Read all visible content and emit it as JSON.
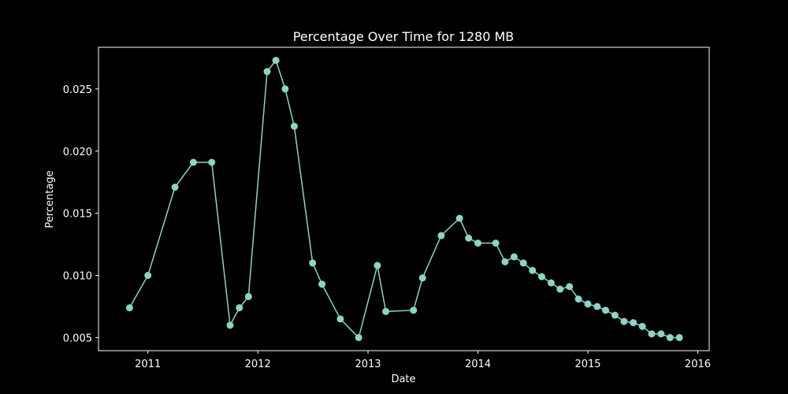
{
  "chart_data": {
    "type": "line",
    "title": "Percentage Over Time for 1280 MB",
    "xlabel": "Date",
    "ylabel": "Percentage",
    "x_ticks": [
      "2011",
      "2012",
      "2013",
      "2014",
      "2015",
      "2016"
    ],
    "y_ticks": [
      "0.005",
      "0.010",
      "0.015",
      "0.020",
      "0.025"
    ],
    "xlim": [
      "2010-07-21",
      "2016-02-08"
    ],
    "ylim": [
      0.00395,
      0.02835
    ],
    "grid": false,
    "line_color": "#8dd3c7",
    "background": "#000000",
    "foreground": "#ffffff",
    "series": [
      {
        "marker": "circle",
        "x": [
          "2010-11-01",
          "2011-01-01",
          "2011-04-01",
          "2011-06-01",
          "2011-08-01",
          "2011-10-01",
          "2011-11-01",
          "2011-12-01",
          "2012-02-01",
          "2012-03-01",
          "2012-04-01",
          "2012-05-01",
          "2012-07-01",
          "2012-08-01",
          "2012-10-01",
          "2012-12-01",
          "2013-02-01",
          "2013-03-01",
          "2013-06-01",
          "2013-07-01",
          "2013-09-01",
          "2013-11-01",
          "2013-12-01",
          "2014-01-01",
          "2014-03-01",
          "2014-04-01",
          "2014-05-01",
          "2014-06-01",
          "2014-07-01",
          "2014-08-01",
          "2014-09-01",
          "2014-10-01",
          "2014-11-01",
          "2014-12-01",
          "2015-01-01",
          "2015-02-01",
          "2015-03-01",
          "2015-04-01",
          "2015-05-01",
          "2015-06-01",
          "2015-07-01",
          "2015-08-01",
          "2015-09-01",
          "2015-10-01",
          "2015-11-01"
        ],
        "y": [
          0.0074,
          0.01,
          0.0171,
          0.0191,
          0.0191,
          0.006,
          0.0074,
          0.0083,
          0.0264,
          0.0273,
          0.025,
          0.022,
          0.011,
          0.0093,
          0.0065,
          0.005,
          0.0108,
          0.0071,
          0.0072,
          0.0098,
          0.0132,
          0.0146,
          0.013,
          0.0126,
          0.0126,
          0.0111,
          0.0115,
          0.011,
          0.0104,
          0.0099,
          0.0094,
          0.0089,
          0.0091,
          0.0081,
          0.0077,
          0.0075,
          0.0072,
          0.0068,
          0.0063,
          0.0062,
          0.0059,
          0.0053,
          0.0053,
          0.005,
          0.005
        ]
      }
    ]
  }
}
